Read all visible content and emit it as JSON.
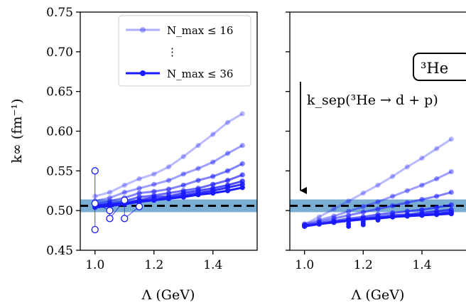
{
  "chart_data": {
    "type": "line",
    "panels": [
      {
        "name": "left",
        "xlabel": "Λ (GeV)",
        "ylabel": "k∞ (fm⁻¹)",
        "xlim": [
          0.95,
          1.55
        ],
        "ylim": [
          0.45,
          0.75
        ],
        "xticks": [
          1.0,
          1.2,
          1.4
        ],
        "xtick_labels": [
          "1.0",
          "1.2",
          "1.4"
        ],
        "yticks": [
          0.45,
          0.5,
          0.55,
          0.6,
          0.65,
          0.7,
          0.75
        ],
        "ytick_labels": [
          "0.45",
          "0.50",
          "0.55",
          "0.60",
          "0.65",
          "0.70",
          "0.75"
        ],
        "band": [
          0.498,
          0.514
        ],
        "reference_line": 0.506,
        "legend": {
          "placement": "top-right",
          "entries": [
            "N_max ≤ 16",
            "⋮",
            "N_max ≤ 36"
          ]
        },
        "series": [
          {
            "x": [
              1.0,
              1.05,
              1.1,
              1.15,
              1.2,
              1.25,
              1.3,
              1.35,
              1.4,
              1.45,
              1.5
            ],
            "values": [
              0.518,
              0.523,
              0.532,
              0.54,
              0.546,
              0.555,
              0.568,
              0.582,
              0.596,
              0.611,
              0.622
            ]
          },
          {
            "x": [
              1.0,
              1.05,
              1.1,
              1.15,
              1.2,
              1.25,
              1.3,
              1.35,
              1.4,
              1.45,
              1.5
            ],
            "values": [
              0.512,
              0.516,
              0.523,
              0.528,
              0.533,
              0.538,
              0.546,
              0.553,
              0.561,
              0.572,
              0.582
            ]
          },
          {
            "x": [
              1.0,
              1.05,
              1.1,
              1.15,
              1.2,
              1.25,
              1.3,
              1.35,
              1.4,
              1.45,
              1.5
            ],
            "values": [
              0.509,
              0.512,
              0.516,
              0.522,
              0.524,
              0.527,
              0.532,
              0.538,
              0.543,
              0.55,
              0.559
            ]
          },
          {
            "x": [
              1.0,
              1.05,
              1.1,
              1.15,
              1.2,
              1.25,
              1.3,
              1.35,
              1.4,
              1.45,
              1.5
            ],
            "values": [
              0.507,
              0.509,
              0.512,
              0.517,
              0.519,
              0.522,
              0.525,
              0.528,
              0.533,
              0.538,
              0.545
            ]
          },
          {
            "x": [
              1.0,
              1.05,
              1.1,
              1.15,
              1.2,
              1.25,
              1.3,
              1.35,
              1.4,
              1.45,
              1.5
            ],
            "values": [
              0.506,
              0.508,
              0.509,
              0.513,
              0.517,
              0.518,
              0.522,
              0.525,
              0.528,
              0.532,
              0.537
            ]
          },
          {
            "x": [
              1.0,
              1.05,
              1.1,
              1.15,
              1.2,
              1.25,
              1.3,
              1.35,
              1.4,
              1.45,
              1.5
            ],
            "values": [
              0.505,
              0.507,
              0.509,
              0.512,
              0.514,
              0.516,
              0.519,
              0.522,
              0.525,
              0.529,
              0.533
            ]
          },
          {
            "x": [
              1.0,
              1.05,
              1.1,
              1.15,
              1.2,
              1.25,
              1.3,
              1.35,
              1.4,
              1.45,
              1.5
            ],
            "values": [
              0.504,
              0.506,
              0.508,
              0.511,
              0.513,
              0.515,
              0.517,
              0.52,
              0.522,
              0.525,
              0.529
            ]
          }
        ],
        "open_markers": [
          {
            "x": 1.0,
            "y": 0.55
          },
          {
            "x": 1.0,
            "y": 0.476
          },
          {
            "x": 1.0,
            "y": 0.509
          },
          {
            "x": 1.05,
            "y": 0.5
          },
          {
            "x": 1.05,
            "y": 0.49
          },
          {
            "x": 1.1,
            "y": 0.513
          },
          {
            "x": 1.1,
            "y": 0.49
          },
          {
            "x": 1.15,
            "y": 0.505
          }
        ]
      },
      {
        "name": "right",
        "xlabel": "Λ (GeV)",
        "xlim": [
          0.95,
          1.55
        ],
        "ylim": [
          0.45,
          0.75
        ],
        "xticks": [
          1.0,
          1.2,
          1.4
        ],
        "xtick_labels": [
          "1.0",
          "1.2",
          "1.4"
        ],
        "band": [
          0.498,
          0.514
        ],
        "reference_line": 0.506,
        "nucleus_label": "³He",
        "arrow_label": "k_sep(³He → d + p)",
        "series": [
          {
            "x": [
              1.0,
              1.05,
              1.1,
              1.15,
              1.2,
              1.25,
              1.3,
              1.35,
              1.4,
              1.45,
              1.5
            ],
            "values": [
              0.483,
              0.492,
              0.502,
              0.512,
              0.522,
              0.532,
              0.543,
              0.555,
              0.566,
              0.578,
              0.59
            ]
          },
          {
            "x": [
              1.0,
              1.05,
              1.1,
              1.15,
              1.2,
              1.25,
              1.3,
              1.35,
              1.4,
              1.45,
              1.5
            ],
            "values": [
              0.483,
              0.488,
              0.493,
              0.499,
              0.505,
              0.511,
              0.518,
              0.525,
              0.532,
              0.54,
              0.549
            ]
          },
          {
            "x": [
              1.0,
              1.05,
              1.1,
              1.15,
              1.2,
              1.25,
              1.3,
              1.35,
              1.4,
              1.45,
              1.5
            ],
            "values": [
              0.482,
              0.486,
              0.49,
              0.494,
              0.498,
              0.502,
              0.506,
              0.51,
              0.514,
              0.518,
              0.523
            ]
          },
          {
            "x": [
              1.0,
              1.05,
              1.1,
              1.15,
              1.2,
              1.25,
              1.3,
              1.35,
              1.4,
              1.45,
              1.5
            ],
            "values": [
              0.481,
              0.484,
              0.487,
              0.49,
              0.492,
              0.495,
              0.497,
              0.499,
              0.501,
              0.504,
              0.507
            ]
          },
          {
            "x": [
              1.0,
              1.05,
              1.1,
              1.15,
              1.2,
              1.25,
              1.3,
              1.35,
              1.4,
              1.45,
              1.5
            ],
            "values": [
              0.481,
              0.483,
              0.486,
              0.488,
              0.49,
              0.492,
              0.494,
              0.495,
              0.497,
              0.499,
              0.501
            ]
          },
          {
            "x": [
              1.0,
              1.05,
              1.1,
              1.15,
              1.2,
              1.25,
              1.3,
              1.35,
              1.4,
              1.45,
              1.5
            ],
            "values": [
              0.48,
              0.483,
              0.485,
              0.487,
              0.489,
              0.491,
              0.492,
              0.494,
              0.495,
              0.496,
              0.498
            ]
          },
          {
            "x": [
              1.15,
              1.2,
              1.25,
              1.3,
              1.35,
              1.4,
              1.45,
              1.5
            ],
            "values": [
              0.488,
              0.489,
              0.49,
              0.492,
              0.493,
              0.494,
              0.495,
              0.496
            ]
          }
        ],
        "scatter_points": [
          {
            "x": 1.15,
            "y": 0.48
          },
          {
            "x": 1.15,
            "y": 0.483
          },
          {
            "x": 1.2,
            "y": 0.482
          },
          {
            "x": 1.2,
            "y": 0.486
          },
          {
            "x": 1.2,
            "y": 0.484
          },
          {
            "x": 1.25,
            "y": 0.488
          }
        ]
      }
    ],
    "colors": {
      "series_blue": "#1a1aff",
      "band": "#7aaed3",
      "reference": "#000000"
    },
    "series_alphas": [
      0.3,
      0.42,
      0.54,
      0.66,
      0.78,
      0.9,
      1.0
    ]
  }
}
